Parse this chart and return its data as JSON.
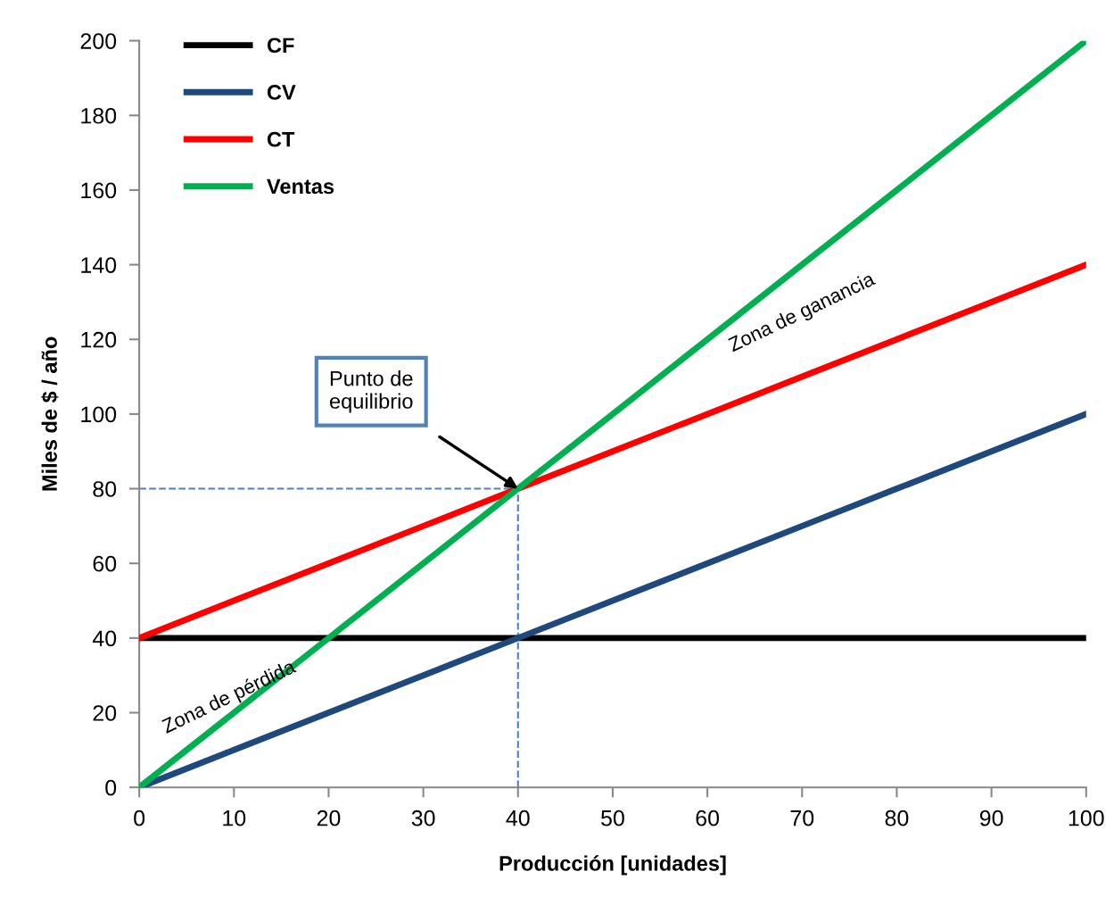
{
  "chart_data": {
    "type": "line",
    "xlabel": "Producción [unidades]",
    "ylabel": "Miles de $ / año",
    "x": [
      0,
      10,
      20,
      30,
      40,
      50,
      60,
      70,
      80,
      90,
      100
    ],
    "series": [
      {
        "name": "CF",
        "color": "#000000",
        "values": [
          40,
          40,
          40,
          40,
          40,
          40,
          40,
          40,
          40,
          40,
          40
        ]
      },
      {
        "name": "CV",
        "color": "#1f497d",
        "values": [
          0,
          10,
          20,
          30,
          40,
          50,
          60,
          70,
          80,
          90,
          100
        ]
      },
      {
        "name": "CT",
        "color": "#ff0000",
        "values": [
          40,
          50,
          60,
          70,
          80,
          90,
          100,
          110,
          120,
          130,
          140
        ]
      },
      {
        "name": "Ventas",
        "color": "#00b050",
        "values": [
          0,
          20,
          40,
          60,
          80,
          100,
          120,
          140,
          160,
          180,
          200
        ]
      }
    ],
    "xlim": [
      0,
      100
    ],
    "xticks": [
      0,
      10,
      20,
      30,
      40,
      50,
      60,
      70,
      80,
      90,
      100
    ],
    "ylim": [
      0,
      200
    ],
    "yticks": [
      0,
      20,
      40,
      60,
      80,
      100,
      120,
      140,
      160,
      180,
      200
    ],
    "ref_lines": [
      {
        "axis": "x",
        "value": 40,
        "color": "#4f81bd",
        "line_style": "dashed"
      },
      {
        "axis": "y",
        "value": 80,
        "color": "#4f81bd",
        "line_style": "dashed"
      }
    ],
    "annotations": [
      "Punto de\nequilibrio",
      "Zona de ganancia",
      "Zona de pérdida"
    ],
    "legend": "top left",
    "grid": false,
    "marker": "none",
    "line_style": "solid"
  }
}
